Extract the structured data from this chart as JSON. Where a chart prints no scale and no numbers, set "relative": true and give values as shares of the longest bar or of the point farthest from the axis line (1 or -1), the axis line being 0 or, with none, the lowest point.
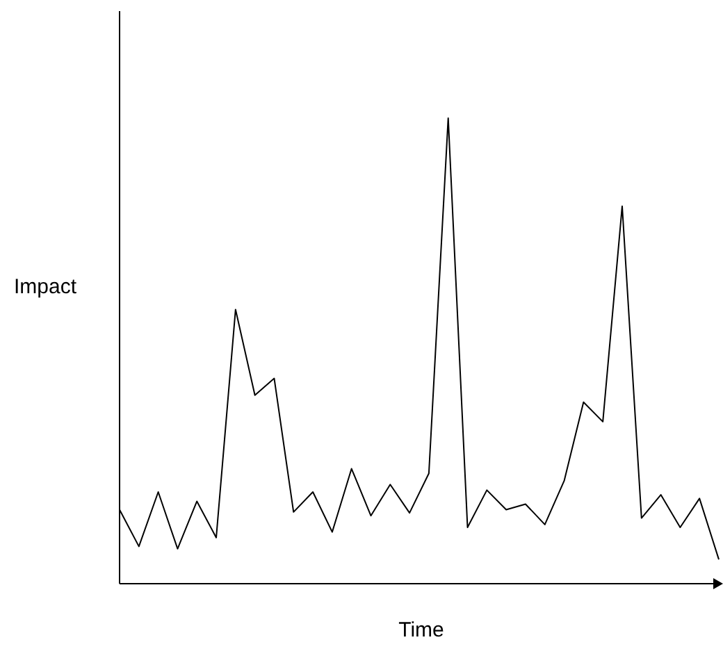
{
  "chart_data": {
    "type": "line",
    "xlabel": "Time",
    "ylabel": "Impact",
    "relative": true,
    "categories": [
      null,
      null,
      null,
      null,
      null,
      null,
      null,
      null,
      null,
      null,
      null,
      null,
      null,
      null,
      null,
      null,
      null,
      null,
      null,
      null,
      null,
      null,
      null,
      null,
      null,
      null,
      null,
      null,
      null,
      null,
      null,
      null
    ],
    "series": [
      {
        "color": "#000000",
        "values": [
          0.159,
          0.08,
          0.197,
          0.075,
          0.177,
          0.099,
          0.589,
          0.405,
          0.441,
          0.154,
          0.197,
          0.111,
          0.247,
          0.146,
          0.213,
          0.152,
          0.237,
          1,
          0.121,
          0.201,
          0.159,
          0.171,
          0.127,
          0.221,
          0.39,
          0.348,
          0.811,
          0.141,
          0.191,
          0.121,
          0.183,
          0.052
        ]
      }
    ],
    "grid": false,
    "legend": false,
    "marker": "none",
    "line_style": "solid"
  }
}
